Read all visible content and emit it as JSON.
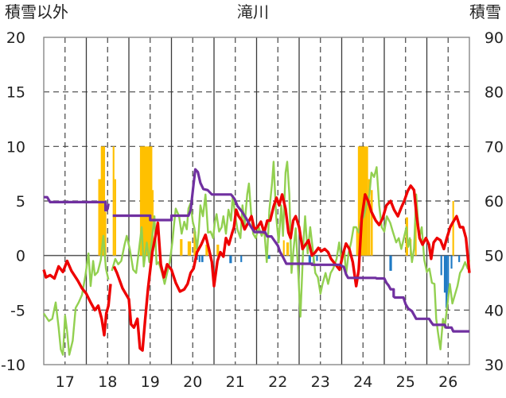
{
  "chart_data": {
    "type": "line",
    "title": "滝川",
    "left_axis_label": "積雪以外",
    "right_axis_label": "積雪",
    "left_ylim": [
      -10,
      20
    ],
    "right_ylim": [
      30,
      90
    ],
    "left_ticks": [
      "20",
      "15",
      "10",
      "5",
      "0",
      "-5",
      "-10"
    ],
    "right_ticks": [
      "90",
      "80",
      "70",
      "60",
      "50",
      "40",
      "30"
    ],
    "x_ticks": [
      "17",
      "18",
      "19",
      "20",
      "21",
      "22",
      "23",
      "24",
      "25",
      "26"
    ],
    "xlim": [
      16.5,
      26.5
    ],
    "grid": true,
    "colors": {
      "red": "#ee0000",
      "green": "#92d050",
      "purple": "#7030a0",
      "orange": "#ffc000",
      "blue": "#1f7ac4",
      "grid": "#444444",
      "frame": "#7f7f7f"
    },
    "red_series": [
      [
        16.5,
        -1.3
      ],
      [
        16.55,
        -2
      ],
      [
        16.65,
        -1.8
      ],
      [
        16.75,
        -2.1
      ],
      [
        16.85,
        -1
      ],
      [
        16.95,
        -1.5
      ],
      [
        17.05,
        -0.5
      ],
      [
        17.15,
        -1.4
      ],
      [
        17.3,
        -2.3
      ],
      [
        17.4,
        -3
      ],
      [
        17.5,
        -3.5
      ],
      [
        17.6,
        -4.3
      ],
      [
        17.7,
        -5
      ],
      [
        17.78,
        -4.6
      ],
      [
        17.86,
        -5.8
      ],
      [
        17.92,
        -7.3
      ],
      [
        17.97,
        -5.3
      ],
      [
        18.02,
        -4.6
      ],
      [
        18.07,
        -2.6
      ],
      null,
      [
        18.15,
        -1
      ],
      [
        18.22,
        -1.6
      ],
      [
        18.35,
        -3
      ],
      [
        18.5,
        -4
      ],
      [
        18.55,
        -6.3
      ],
      [
        18.62,
        -6.6
      ],
      [
        18.7,
        -5.8
      ],
      [
        18.76,
        -8.5
      ],
      [
        18.82,
        -8.7
      ],
      [
        18.88,
        -6
      ],
      [
        18.95,
        -3
      ],
      [
        19.05,
        0.3
      ],
      [
        19.12,
        1.7
      ],
      [
        19.18,
        3
      ],
      [
        19.25,
        -0.8
      ],
      [
        19.32,
        -2
      ],
      [
        19.4,
        -0.8
      ],
      [
        19.5,
        -1.3
      ],
      [
        19.6,
        -2.5
      ],
      [
        19.7,
        -3.3
      ],
      [
        19.8,
        -3.1
      ],
      [
        19.88,
        -2.6
      ],
      [
        19.95,
        -1.6
      ],
      [
        20.02,
        -1.2
      ],
      [
        20.1,
        0.3
      ],
      [
        20.2,
        1
      ],
      [
        20.3,
        1.9
      ],
      [
        20.38,
        0.6
      ],
      [
        20.45,
        -0.6
      ],
      [
        20.5,
        -2.8
      ],
      [
        20.58,
        -0.5
      ],
      [
        20.65,
        0.3
      ],
      [
        20.72,
        -0.1
      ],
      [
        20.78,
        1.6
      ],
      [
        20.85,
        1
      ],
      [
        20.92,
        2
      ],
      [
        20.97,
        2.6
      ],
      [
        21.02,
        4.2
      ],
      [
        21.08,
        3.6
      ],
      [
        21.15,
        3.2
      ],
      [
        21.22,
        2.4
      ],
      [
        21.3,
        3
      ],
      [
        21.38,
        3.6
      ],
      [
        21.45,
        2.4
      ],
      [
        21.52,
        2.6
      ],
      [
        21.6,
        3.1
      ],
      [
        21.68,
        2.1
      ],
      [
        21.75,
        3.2
      ],
      [
        21.82,
        3.2
      ],
      [
        21.9,
        4.5
      ],
      [
        21.97,
        5.3
      ],
      [
        22.03,
        4.6
      ],
      [
        22.1,
        5.6
      ],
      [
        22.18,
        4.3
      ],
      [
        22.25,
        2.1
      ],
      [
        22.3,
        1.6
      ],
      [
        22.36,
        3.2
      ],
      [
        22.42,
        3.6
      ],
      [
        22.5,
        2.6
      ],
      [
        22.58,
        0.6
      ],
      [
        22.65,
        1
      ],
      [
        22.72,
        1.4
      ],
      [
        22.8,
        0
      ],
      [
        22.88,
        0.3
      ],
      [
        22.95,
        0.7
      ],
      [
        23.02,
        0.4
      ],
      [
        23.1,
        0.6
      ],
      [
        23.18,
        0.3
      ],
      [
        23.25,
        -0.3
      ],
      [
        23.35,
        -0.8
      ],
      [
        23.45,
        -1.3
      ],
      [
        23.52,
        0
      ],
      [
        23.6,
        1.1
      ],
      [
        23.68,
        0.6
      ],
      [
        23.76,
        -0.6
      ],
      [
        23.84,
        -2.8
      ],
      [
        23.9,
        -1.3
      ],
      [
        23.97,
        3.4
      ],
      [
        24.05,
        5.6
      ],
      [
        24.12,
        5
      ],
      [
        24.2,
        4
      ],
      [
        24.3,
        3.2
      ],
      [
        24.38,
        2.8
      ],
      [
        24.46,
        3.4
      ],
      [
        24.55,
        4.6
      ],
      [
        24.65,
        5
      ],
      [
        24.73,
        4.2
      ],
      [
        24.82,
        3.6
      ],
      [
        24.9,
        4.4
      ],
      [
        24.97,
        5
      ],
      [
        25.05,
        5.9
      ],
      [
        25.12,
        6.4
      ],
      [
        25.2,
        6
      ],
      [
        25.26,
        3.6
      ],
      [
        25.33,
        1.6
      ],
      [
        25.4,
        1
      ],
      [
        25.48,
        1.6
      ],
      [
        25.55,
        1
      ],
      [
        25.6,
        -0.3
      ],
      [
        25.66,
        1.2
      ],
      [
        25.74,
        1.6
      ],
      [
        25.82,
        1.4
      ],
      [
        25.9,
        0.6
      ],
      [
        25.97,
        1.6
      ],
      [
        26.05,
        2.6
      ],
      [
        26.12,
        3.1
      ],
      [
        26.2,
        3.6
      ],
      [
        26.28,
        2.6
      ],
      [
        26.35,
        2.6
      ],
      [
        26.42,
        1.6
      ],
      [
        26.48,
        -0.8
      ],
      [
        26.5,
        -1.6
      ]
    ],
    "green_series": [
      [
        16.5,
        -5.3
      ],
      [
        16.55,
        -5.6
      ],
      [
        16.62,
        -6
      ],
      [
        16.7,
        -5.8
      ],
      [
        16.78,
        -4.3
      ],
      [
        16.85,
        -6.6
      ],
      [
        16.9,
        -8.6
      ],
      [
        16.95,
        -9.1
      ],
      [
        17,
        -5.5
      ],
      [
        17.05,
        -7
      ],
      [
        17.1,
        -9.1
      ],
      [
        17.18,
        -7.8
      ],
      [
        17.25,
        -4.8
      ],
      [
        17.32,
        -4.3
      ],
      [
        17.4,
        -3.6
      ],
      [
        17.48,
        -1.8
      ],
      [
        17.55,
        0.2
      ],
      [
        17.6,
        -2.8
      ],
      [
        17.66,
        -0.5
      ],
      [
        17.7,
        -1.8
      ],
      [
        17.77,
        -1.5
      ],
      [
        17.84,
        -0.4
      ],
      [
        17.9,
        1.8
      ],
      [
        17.96,
        -1.2
      ],
      [
        18.02,
        -2.2
      ],
      null,
      [
        18.1,
        -1.4
      ],
      [
        18.18,
        -0.3
      ],
      [
        18.25,
        -0.8
      ],
      [
        18.32,
        -0.5
      ],
      [
        18.4,
        1
      ],
      [
        18.45,
        1.8
      ],
      [
        18.52,
        0.6
      ],
      [
        18.6,
        -1.3
      ],
      [
        18.67,
        -1.6
      ],
      [
        18.72,
        0
      ],
      [
        18.8,
        2.6
      ],
      [
        18.85,
        -1
      ],
      [
        18.92,
        1.2
      ],
      [
        18.98,
        -0.6
      ],
      [
        19.05,
        1.8
      ],
      [
        19.1,
        3.6
      ],
      [
        19.15,
        -0.8
      ],
      [
        19.2,
        -0.6
      ],
      [
        19.28,
        -1.6
      ],
      [
        19.34,
        -2.6
      ],
      [
        19.4,
        -1.6
      ],
      [
        19.46,
        -0.6
      ],
      [
        19.52,
        1.2
      ],
      [
        19.56,
        2.8
      ],
      [
        19.6,
        4.3
      ],
      [
        19.68,
        3.6
      ],
      [
        19.74,
        2
      ],
      [
        19.8,
        3.1
      ],
      [
        19.86,
        2.4
      ],
      [
        19.9,
        4.3
      ],
      [
        19.95,
        4.8
      ],
      [
        20,
        3.1
      ],
      [
        20.04,
        2.5
      ],
      [
        20.1,
        0.6
      ],
      [
        20.14,
        2.1
      ],
      [
        20.18,
        4.6
      ],
      [
        20.24,
        3.6
      ],
      [
        20.3,
        5.6
      ],
      [
        20.36,
        2.1
      ],
      [
        20.42,
        2.2
      ],
      [
        20.48,
        1.6
      ],
      [
        20.52,
        3.1
      ],
      [
        20.56,
        3.8
      ],
      [
        20.62,
        2.2
      ],
      [
        20.68,
        2.6
      ],
      [
        20.72,
        3.6
      ],
      [
        20.78,
        2
      ],
      [
        20.84,
        4.2
      ],
      [
        20.9,
        3.2
      ],
      [
        20.94,
        5.5
      ],
      [
        21,
        3.6
      ],
      [
        21.05,
        2.4
      ],
      [
        21.12,
        1.6
      ],
      [
        21.17,
        4.6
      ],
      [
        21.22,
        2.8
      ],
      [
        21.28,
        5.6
      ],
      [
        21.32,
        6.6
      ],
      [
        21.37,
        4
      ],
      [
        21.42,
        2
      ],
      [
        21.48,
        1.6
      ],
      [
        21.55,
        2.6
      ],
      [
        21.62,
        1.8
      ],
      [
        21.68,
        2.4
      ],
      [
        21.74,
        -0.6
      ],
      [
        21.8,
        4.2
      ],
      [
        21.86,
        6.5
      ],
      [
        21.9,
        8.6
      ],
      [
        21.96,
        3.6
      ],
      [
        22.02,
        1.2
      ],
      [
        22.08,
        4.6
      ],
      [
        22.12,
        1.8
      ],
      [
        22.18,
        7.6
      ],
      [
        22.22,
        8.6
      ],
      [
        22.27,
        5.6
      ],
      [
        22.32,
        -1.6
      ],
      [
        22.37,
        0.6
      ],
      [
        22.42,
        2.5
      ],
      [
        22.48,
        -1.6
      ],
      [
        22.53,
        -5.6
      ],
      [
        22.6,
        1.2
      ],
      [
        22.64,
        3.6
      ],
      [
        22.7,
        0.2
      ],
      [
        22.76,
        2.6
      ],
      [
        22.82,
        0.6
      ],
      [
        22.88,
        -1.6
      ],
      [
        22.94,
        -2
      ],
      [
        23,
        -3.5
      ],
      [
        23.05,
        -2.6
      ],
      [
        23.12,
        -1.6
      ],
      [
        23.18,
        -2.6
      ],
      [
        23.24,
        -1.6
      ],
      [
        23.3,
        -1.2
      ],
      [
        23.38,
        -0.3
      ],
      [
        23.44,
        1.2
      ],
      [
        23.5,
        -0.6
      ],
      [
        23.56,
        0.6
      ],
      [
        23.6,
        -1.8
      ],
      [
        23.66,
        0.2
      ],
      [
        23.72,
        1.2
      ],
      [
        23.78,
        2.6
      ],
      [
        23.84,
        2.6
      ],
      [
        23.9,
        2.1
      ],
      [
        23.95,
        3.1
      ],
      [
        24.02,
        3.6
      ],
      [
        24.08,
        4.6
      ],
      [
        24.15,
        5.6
      ],
      [
        24.2,
        7.6
      ],
      [
        24.26,
        7.2
      ],
      [
        24.32,
        8.1
      ],
      [
        24.38,
        4.6
      ],
      [
        24.44,
        2.6
      ],
      [
        24.5,
        2.2
      ],
      [
        24.56,
        3.6
      ],
      [
        24.64,
        3
      ],
      [
        24.7,
        2.2
      ],
      [
        24.78,
        1.2
      ],
      [
        24.84,
        1.6
      ],
      [
        24.9,
        0.6
      ],
      [
        24.96,
        1.6
      ],
      [
        25.02,
        2.6
      ],
      [
        25.06,
        0.8
      ],
      [
        25.1,
        1.6
      ],
      [
        25.15,
        -0.6
      ],
      [
        25.2,
        0.6
      ],
      [
        25.25,
        5.6
      ],
      [
        25.32,
        1.6
      ],
      [
        25.38,
        2.6
      ],
      [
        25.44,
        -0.4
      ],
      [
        25.5,
        -1.5
      ],
      [
        25.56,
        -1.2
      ],
      [
        25.62,
        -2.5
      ],
      [
        25.68,
        -2.6
      ],
      [
        25.72,
        -5.8
      ],
      [
        25.76,
        -7
      ],
      [
        25.82,
        -8.6
      ],
      [
        25.88,
        -5.8
      ],
      [
        25.92,
        -6.6
      ],
      [
        25.98,
        -4.6
      ],
      [
        26.04,
        -2.6
      ],
      [
        26.1,
        -4.4
      ],
      [
        26.16,
        -3.6
      ],
      [
        26.22,
        -2.8
      ],
      [
        26.28,
        -1.6
      ],
      [
        26.34,
        -1.2
      ],
      [
        26.4,
        -0.6
      ],
      [
        26.46,
        -1.2
      ],
      [
        26.5,
        -0.4
      ]
    ],
    "purple_series": [
      [
        16.5,
        60.7
      ],
      [
        16.58,
        60.7
      ],
      [
        16.65,
        59.8
      ],
      [
        17.95,
        59.8
      ],
      [
        17.95,
        58.3
      ],
      [
        17.98,
        58.3
      ],
      [
        18,
        58.6
      ],
      [
        18.02,
        59.5
      ],
      null,
      [
        18.12,
        57.3
      ],
      [
        19,
        57.3
      ],
      [
        19,
        56.5
      ],
      [
        19.5,
        56.5
      ],
      [
        19.5,
        57.3
      ],
      [
        19.9,
        57.3
      ],
      [
        19.95,
        58.3
      ],
      [
        20.02,
        63.1
      ],
      [
        20.06,
        65.8
      ],
      [
        20.12,
        65.3
      ],
      [
        20.18,
        63.3
      ],
      [
        20.25,
        62.2
      ],
      [
        20.35,
        62
      ],
      [
        20.45,
        61.2
      ],
      [
        20.9,
        61.2
      ],
      [
        20.98,
        60.4
      ],
      [
        21.05,
        59.1
      ],
      [
        21.15,
        58.1
      ],
      [
        21.25,
        56.9
      ],
      [
        21.35,
        55.5
      ],
      [
        21.45,
        54.3
      ],
      [
        21.7,
        54.3
      ],
      [
        21.75,
        53.5
      ],
      [
        21.85,
        53.5
      ],
      [
        21.92,
        52.7
      ],
      [
        22,
        51.8
      ],
      [
        22.05,
        50.7
      ],
      [
        22.12,
        49.7
      ],
      [
        22.2,
        48.5
      ],
      [
        22.8,
        48.5
      ],
      [
        22.8,
        48.3
      ],
      [
        23.45,
        48.3
      ],
      [
        23.5,
        48.1
      ],
      [
        23.55,
        47.9
      ],
      [
        23.6,
        46.6
      ],
      [
        23.65,
        45.9
      ],
      [
        24.3,
        45.9
      ],
      [
        24.32,
        45.8
      ],
      [
        24.5,
        45.8
      ],
      [
        24.55,
        45
      ],
      [
        24.6,
        44.5
      ],
      [
        24.65,
        43.8
      ],
      [
        24.72,
        43.8
      ],
      [
        24.72,
        42.5
      ],
      [
        24.75,
        42.3
      ],
      [
        24.95,
        42.3
      ],
      [
        25,
        41.1
      ],
      [
        25.06,
        40.3
      ],
      [
        25.15,
        39.8
      ],
      [
        25.25,
        38.4
      ],
      [
        25.55,
        38.4
      ],
      [
        25.6,
        37.8
      ],
      [
        25.65,
        37.3
      ],
      [
        25.92,
        37.3
      ],
      [
        25.95,
        36.8
      ],
      [
        26.08,
        36.8
      ],
      [
        26.12,
        36.1
      ],
      [
        26.5,
        36.1
      ]
    ],
    "orange_bars": [
      [
        17.78,
        17.86,
        7
      ],
      [
        17.84,
        17.94,
        10
      ],
      [
        17.94,
        17.97,
        4
      ],
      [
        18.12,
        18.16,
        10
      ],
      [
        18.16,
        18.2,
        7
      ],
      [
        18.76,
        19.05,
        10
      ],
      [
        19.05,
        19.08,
        6
      ],
      [
        19.7,
        19.76,
        1.5
      ],
      [
        19.88,
        19.96,
        1.3
      ],
      [
        20.02,
        20.08,
        2.2
      ],
      [
        20.3,
        20.36,
        1
      ],
      [
        20.56,
        20.62,
        1
      ],
      [
        22.12,
        22.16,
        1.4
      ],
      [
        22.2,
        22.26,
        1.2
      ],
      [
        23.84,
        23.88,
        2.5
      ],
      [
        23.88,
        24.12,
        10
      ],
      [
        24.12,
        24.17,
        7
      ],
      [
        24.18,
        24.23,
        6
      ],
      [
        25,
        25.06,
        3.5
      ],
      [
        25.1,
        25.14,
        1.5
      ],
      [
        25.22,
        25.26,
        3
      ],
      [
        26.1,
        26.14,
        5
      ]
    ],
    "blue_bars": [
      [
        20.06,
        20.12,
        -0.4
      ],
      [
        20.14,
        20.18,
        -0.6
      ],
      [
        20.2,
        20.25,
        -0.6
      ],
      [
        20.86,
        20.92,
        -0.7
      ],
      [
        21.12,
        21.16,
        -0.6
      ],
      [
        21.72,
        21.76,
        -0.5
      ],
      [
        21.76,
        21.82,
        -0.3
      ],
      [
        22.72,
        22.78,
        -0.7
      ],
      [
        22.82,
        22.86,
        -0.7
      ],
      [
        22.9,
        22.94,
        -0.5
      ],
      [
        24.62,
        24.68,
        -1.4
      ],
      [
        25.82,
        25.86,
        -1.8
      ],
      [
        25.9,
        25.94,
        -3.4
      ],
      [
        25.94,
        25.98,
        -4.8
      ],
      [
        25.98,
        26.02,
        -3.8
      ],
      [
        26.06,
        26.1,
        -1.2
      ],
      [
        26.24,
        26.28,
        -0.6
      ]
    ]
  }
}
